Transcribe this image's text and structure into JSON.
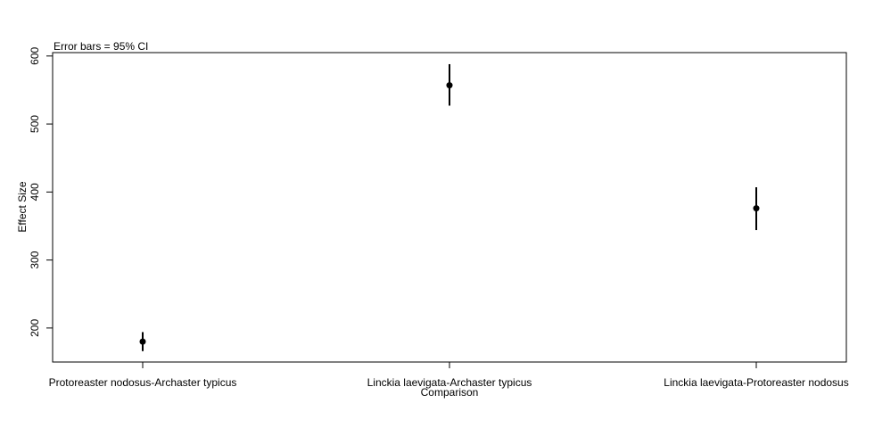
{
  "chart_data": {
    "type": "scatter",
    "annotation": "Error bars = 95% CI",
    "xlabel": "Comparison",
    "ylabel": "Effect Size",
    "ylim": [
      150,
      605
    ],
    "yticks": [
      200,
      300,
      400,
      500,
      600
    ],
    "grid": false,
    "legend": "none",
    "categories": [
      "Protoreaster nodosus-Archaster typicus",
      "Linckia laevigata-Archaster typicus",
      "Linckia laevigata-Protoreaster nodosus"
    ],
    "series": [
      {
        "values": [
          180,
          557,
          376
        ],
        "ci_lower": [
          166,
          527,
          344
        ],
        "ci_upper": [
          194,
          588,
          407
        ]
      }
    ]
  }
}
